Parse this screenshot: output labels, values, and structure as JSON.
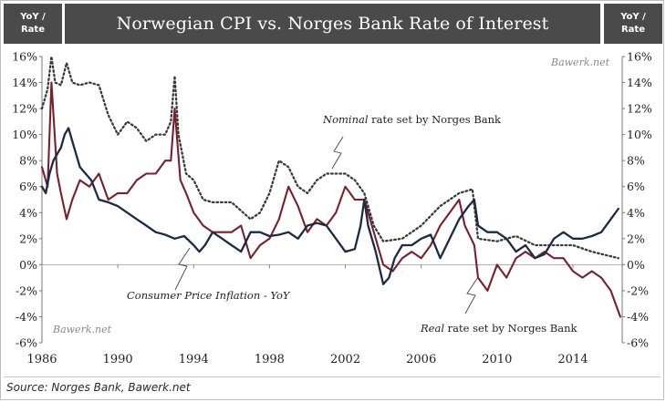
{
  "title": "Norwegian CPI vs. Norges Bank  Rate of Interest",
  "unit_left_line1": "YoY /",
  "unit_left_line2": "Rate",
  "unit_right_line1": "YoY /",
  "unit_right_line2": "Rate",
  "watermark_top": "Bawerk.net",
  "watermark_bottom": "Bawerk.net",
  "source": "Source: Norges Bank, Bawerk.net",
  "annotations": {
    "nominal_italic": "Nominal",
    "nominal_rest": " rate set by Norges Bank",
    "cpi": "Consumer Price Inflation - YoY",
    "real_italic": "Real",
    "real_rest": " rate set by Norges Bank"
  },
  "colors": {
    "cpi": "#1b2a45",
    "real": "#7a1f2b",
    "nominal": "#3a3a3a"
  },
  "chart_data": {
    "type": "line",
    "title": "Norwegian CPI vs. Norges Bank  Rate of Interest",
    "xlabel": "",
    "ylabel": "YoY / Rate",
    "xlim": [
      1986,
      2016.6
    ],
    "ylim": [
      -6,
      16
    ],
    "x_ticks": [
      1986,
      1990,
      1994,
      1998,
      2002,
      2006,
      2010,
      2014
    ],
    "x_tick_labels": [
      "1986",
      "1990",
      "1994",
      "1998",
      "2002",
      "2006",
      "2010",
      "2014"
    ],
    "y_ticks": [
      -6,
      -4,
      -2,
      0,
      2,
      4,
      6,
      8,
      10,
      12,
      14,
      16
    ],
    "y_tick_labels": [
      "-6%",
      "-4%",
      "-2%",
      "0%",
      "2%",
      "4%",
      "6%",
      "8%",
      "10%",
      "12%",
      "14%",
      "16%"
    ],
    "grid": false,
    "series": [
      {
        "name": "Nominal rate set by Norges Bank",
        "style": "dotted",
        "points": [
          [
            1986.0,
            12.0
          ],
          [
            1986.3,
            13.5
          ],
          [
            1986.5,
            16.0
          ],
          [
            1986.7,
            14.0
          ],
          [
            1987.0,
            13.8
          ],
          [
            1987.3,
            15.5
          ],
          [
            1987.6,
            14.0
          ],
          [
            1988.0,
            13.8
          ],
          [
            1988.5,
            14.0
          ],
          [
            1989.0,
            13.8
          ],
          [
            1989.5,
            11.5
          ],
          [
            1990.0,
            10.0
          ],
          [
            1990.5,
            11.0
          ],
          [
            1991.0,
            10.5
          ],
          [
            1991.5,
            9.5
          ],
          [
            1992.0,
            10.0
          ],
          [
            1992.5,
            10.0
          ],
          [
            1992.8,
            11.0
          ],
          [
            1993.0,
            14.5
          ],
          [
            1993.2,
            10.0
          ],
          [
            1993.6,
            7.0
          ],
          [
            1994.0,
            6.5
          ],
          [
            1994.5,
            5.0
          ],
          [
            1995.0,
            4.8
          ],
          [
            1996.0,
            4.8
          ],
          [
            1997.0,
            3.5
          ],
          [
            1997.5,
            4.0
          ],
          [
            1998.0,
            5.5
          ],
          [
            1998.5,
            8.0
          ],
          [
            1999.0,
            7.5
          ],
          [
            1999.5,
            6.0
          ],
          [
            2000.0,
            5.5
          ],
          [
            2000.5,
            6.5
          ],
          [
            2001.0,
            7.0
          ],
          [
            2002.0,
            7.0
          ],
          [
            2002.5,
            6.5
          ],
          [
            2003.0,
            5.5
          ],
          [
            2003.5,
            3.0
          ],
          [
            2004.0,
            1.8
          ],
          [
            2005.0,
            2.0
          ],
          [
            2006.0,
            3.0
          ],
          [
            2007.0,
            4.5
          ],
          [
            2008.0,
            5.5
          ],
          [
            2008.7,
            5.8
          ],
          [
            2009.0,
            2.0
          ],
          [
            2010.0,
            1.8
          ],
          [
            2011.0,
            2.2
          ],
          [
            2012.0,
            1.5
          ],
          [
            2013.0,
            1.5
          ],
          [
            2014.0,
            1.5
          ],
          [
            2015.0,
            1.0
          ],
          [
            2016.4,
            0.5
          ]
        ]
      },
      {
        "name": "Real rate set by Norges Bank",
        "style": "solid",
        "points": [
          [
            1986.0,
            7.5
          ],
          [
            1986.3,
            6.0
          ],
          [
            1986.5,
            14.0
          ],
          [
            1986.8,
            7.0
          ],
          [
            1987.0,
            5.5
          ],
          [
            1987.3,
            3.5
          ],
          [
            1987.6,
            5.0
          ],
          [
            1988.0,
            6.5
          ],
          [
            1988.5,
            6.0
          ],
          [
            1989.0,
            7.0
          ],
          [
            1989.5,
            5.0
          ],
          [
            1990.0,
            5.5
          ],
          [
            1990.5,
            5.5
          ],
          [
            1991.0,
            6.5
          ],
          [
            1991.5,
            7.0
          ],
          [
            1992.0,
            7.0
          ],
          [
            1992.5,
            8.0
          ],
          [
            1992.8,
            8.0
          ],
          [
            1993.0,
            12.0
          ],
          [
            1993.3,
            6.5
          ],
          [
            1993.6,
            5.5
          ],
          [
            1994.0,
            4.0
          ],
          [
            1994.5,
            3.0
          ],
          [
            1995.0,
            2.5
          ],
          [
            1996.0,
            2.5
          ],
          [
            1996.5,
            3.0
          ],
          [
            1997.0,
            0.5
          ],
          [
            1997.5,
            1.5
          ],
          [
            1998.0,
            2.0
          ],
          [
            1998.5,
            3.5
          ],
          [
            1999.0,
            6.0
          ],
          [
            1999.5,
            4.5
          ],
          [
            2000.0,
            2.5
          ],
          [
            2000.5,
            3.5
          ],
          [
            2001.0,
            3.0
          ],
          [
            2001.5,
            4.0
          ],
          [
            2002.0,
            6.0
          ],
          [
            2002.5,
            5.0
          ],
          [
            2003.0,
            5.0
          ],
          [
            2003.3,
            3.5
          ],
          [
            2003.7,
            1.5
          ],
          [
            2004.0,
            0.0
          ],
          [
            2004.5,
            -0.5
          ],
          [
            2005.0,
            0.5
          ],
          [
            2005.5,
            1.0
          ],
          [
            2006.0,
            0.5
          ],
          [
            2006.5,
            1.5
          ],
          [
            2007.0,
            3.0
          ],
          [
            2007.5,
            4.0
          ],
          [
            2008.0,
            5.0
          ],
          [
            2008.3,
            3.0
          ],
          [
            2008.8,
            1.5
          ],
          [
            2009.0,
            -1.0
          ],
          [
            2009.5,
            -2.0
          ],
          [
            2010.0,
            0.0
          ],
          [
            2010.5,
            -1.0
          ],
          [
            2011.0,
            0.5
          ],
          [
            2011.5,
            1.0
          ],
          [
            2012.0,
            0.5
          ],
          [
            2012.5,
            1.0
          ],
          [
            2013.0,
            0.5
          ],
          [
            2013.5,
            0.5
          ],
          [
            2014.0,
            -0.5
          ],
          [
            2014.5,
            -1.0
          ],
          [
            2015.0,
            -0.5
          ],
          [
            2015.5,
            -1.0
          ],
          [
            2016.0,
            -2.0
          ],
          [
            2016.5,
            -4.0
          ]
        ]
      },
      {
        "name": "Consumer Price Inflation - YoY",
        "style": "solid",
        "points": [
          [
            1986.0,
            6.0
          ],
          [
            1986.2,
            5.5
          ],
          [
            1986.4,
            7.0
          ],
          [
            1986.6,
            8.0
          ],
          [
            1987.0,
            9.0
          ],
          [
            1987.2,
            10.0
          ],
          [
            1987.4,
            10.5
          ],
          [
            1987.7,
            9.0
          ],
          [
            1988.0,
            7.5
          ],
          [
            1988.3,
            7.0
          ],
          [
            1988.6,
            6.5
          ],
          [
            1989.0,
            5.0
          ],
          [
            1989.5,
            4.8
          ],
          [
            1990.0,
            4.5
          ],
          [
            1990.5,
            4.0
          ],
          [
            1991.0,
            3.5
          ],
          [
            1991.5,
            3.0
          ],
          [
            1992.0,
            2.5
          ],
          [
            1992.5,
            2.3
          ],
          [
            1993.0,
            2.0
          ],
          [
            1993.5,
            2.2
          ],
          [
            1994.0,
            1.5
          ],
          [
            1994.3,
            1.0
          ],
          [
            1994.6,
            1.5
          ],
          [
            1995.0,
            2.5
          ],
          [
            1995.5,
            2.0
          ],
          [
            1996.0,
            1.5
          ],
          [
            1996.5,
            1.0
          ],
          [
            1997.0,
            2.5
          ],
          [
            1997.5,
            2.5
          ],
          [
            1998.0,
            2.2
          ],
          [
            1998.5,
            2.3
          ],
          [
            1999.0,
            2.5
          ],
          [
            1999.5,
            2.0
          ],
          [
            2000.0,
            3.0
          ],
          [
            2000.5,
            3.2
          ],
          [
            2001.0,
            3.0
          ],
          [
            2001.5,
            2.0
          ],
          [
            2002.0,
            1.0
          ],
          [
            2002.5,
            1.2
          ],
          [
            2002.8,
            3.0
          ],
          [
            2003.0,
            5.0
          ],
          [
            2003.2,
            3.0
          ],
          [
            2003.6,
            1.0
          ],
          [
            2004.0,
            -1.5
          ],
          [
            2004.3,
            -1.0
          ],
          [
            2004.6,
            0.5
          ],
          [
            2005.0,
            1.5
          ],
          [
            2005.5,
            1.5
          ],
          [
            2006.0,
            2.0
          ],
          [
            2006.5,
            2.3
          ],
          [
            2007.0,
            0.5
          ],
          [
            2007.5,
            2.0
          ],
          [
            2008.0,
            3.5
          ],
          [
            2008.5,
            4.5
          ],
          [
            2008.8,
            5.0
          ],
          [
            2009.0,
            3.0
          ],
          [
            2009.5,
            2.5
          ],
          [
            2010.0,
            2.5
          ],
          [
            2010.5,
            2.0
          ],
          [
            2011.0,
            1.0
          ],
          [
            2011.5,
            1.5
          ],
          [
            2012.0,
            0.5
          ],
          [
            2012.5,
            0.8
          ],
          [
            2013.0,
            2.0
          ],
          [
            2013.5,
            2.5
          ],
          [
            2014.0,
            2.0
          ],
          [
            2014.5,
            2.0
          ],
          [
            2015.0,
            2.2
          ],
          [
            2015.5,
            2.5
          ],
          [
            2016.0,
            3.5
          ],
          [
            2016.4,
            4.3
          ]
        ]
      }
    ]
  }
}
